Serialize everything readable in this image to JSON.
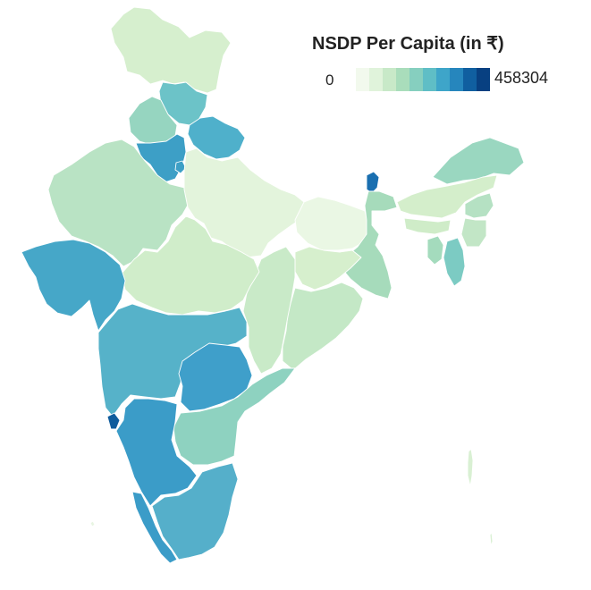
{
  "legend": {
    "title": "NSDP Per Capita (in ₹)",
    "min_label": "0",
    "max_label": "458304",
    "color_scale": [
      "#f2f9ed",
      "#e0f3db",
      "#c8e9c8",
      "#a9ddbb",
      "#86cfbf",
      "#5fbec6",
      "#3ea5c9",
      "#2686bd",
      "#105fa0",
      "#084081"
    ]
  },
  "map": {
    "country": "India",
    "metric": "NSDP Per Capita (in ₹)",
    "regions": [
      {
        "name": "Jammu & Kashmir",
        "color": "#d6efce"
      },
      {
        "name": "Himachal Pradesh",
        "color": "#6cc3c8"
      },
      {
        "name": "Punjab",
        "color": "#96d5c0"
      },
      {
        "name": "Uttarakhand",
        "color": "#4fb0cb"
      },
      {
        "name": "Haryana",
        "color": "#3d9fc6"
      },
      {
        "name": "Delhi",
        "color": "#3d9fc6"
      },
      {
        "name": "Rajasthan",
        "color": "#b9e3c4"
      },
      {
        "name": "Uttar Pradesh",
        "color": "#e3f4dc"
      },
      {
        "name": "Bihar",
        "color": "#eaf7e4"
      },
      {
        "name": "Sikkim",
        "color": "#1a6fb0"
      },
      {
        "name": "Arunachal Pradesh",
        "color": "#9ad7c0"
      },
      {
        "name": "Assam",
        "color": "#d4eecb"
      },
      {
        "name": "Meghalaya",
        "color": "#cfecc8"
      },
      {
        "name": "Nagaland",
        "color": "#b5e1c3"
      },
      {
        "name": "Manipur",
        "color": "#c2e6c6"
      },
      {
        "name": "Mizoram",
        "color": "#7ccbc3"
      },
      {
        "name": "Tripura",
        "color": "#a4dbbd"
      },
      {
        "name": "West Bengal",
        "color": "#a6dbbb"
      },
      {
        "name": "Jharkhand",
        "color": "#d6efcd"
      },
      {
        "name": "Odisha",
        "color": "#c4e8c6"
      },
      {
        "name": "Chhattisgarh",
        "color": "#c9eac8"
      },
      {
        "name": "Madhya Pradesh",
        "color": "#d0edca"
      },
      {
        "name": "Gujarat",
        "color": "#46a7c8"
      },
      {
        "name": "Maharashtra",
        "color": "#56b2c9"
      },
      {
        "name": "Goa",
        "color": "#0f5c9c"
      },
      {
        "name": "Telangana",
        "color": "#3f9fca"
      },
      {
        "name": "Andhra Pradesh",
        "color": "#8ed2c0"
      },
      {
        "name": "Karnataka",
        "color": "#3b9cc8"
      },
      {
        "name": "Kerala",
        "color": "#3b9cc8"
      },
      {
        "name": "Tamil Nadu",
        "color": "#55afca"
      },
      {
        "name": "Lakshadweep",
        "color": "#e8f5e2"
      },
      {
        "name": "Andaman & Nicobar Islands",
        "color": "#d9f0d3"
      }
    ]
  }
}
